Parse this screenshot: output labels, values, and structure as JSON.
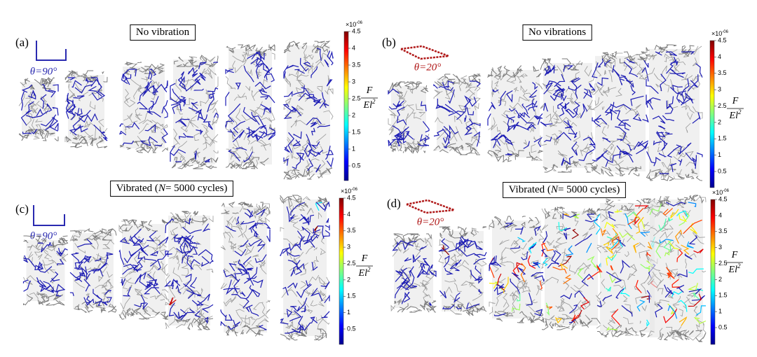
{
  "panels": [
    {
      "label": "(a)",
      "title": {
        "before": "No vibration"
      },
      "angle": "θ=90°",
      "colorbar": {
        "multiplier": "×10",
        "exponent": "-06",
        "ticks": [
          0.5,
          1,
          1.5,
          2,
          2.5,
          3,
          3.5,
          4,
          4.5
        ]
      },
      "force_label": {
        "numerator": "F",
        "denominator": "El",
        "exponent": "2"
      }
    },
    {
      "label": "(b)",
      "title": {
        "before": "No vibrations"
      },
      "angle": "θ=20°",
      "colorbar": {
        "multiplier": "×10",
        "exponent": "-06",
        "ticks": [
          0.5,
          1,
          1.5,
          2,
          2.5,
          3,
          3.5,
          4,
          4.5
        ]
      },
      "force_label": {
        "numerator": "F",
        "denominator": "El",
        "exponent": "2"
      }
    },
    {
      "label": "(c)",
      "title": {
        "before": "Vibrated (",
        "italic": "N",
        "after": "= 5000 cycles)"
      },
      "angle": "θ=90°",
      "colorbar": {
        "multiplier": "×10",
        "exponent": "-06",
        "ticks": [
          0.5,
          1,
          1.5,
          2,
          2.5,
          3,
          3.5,
          4,
          4.5
        ]
      },
      "force_label": {
        "numerator": "F",
        "denominator": "El",
        "exponent": "2"
      }
    },
    {
      "label": "(d)",
      "title": {
        "before": "Vibrated (",
        "italic": "N",
        "after": "= 5000 cycles)"
      },
      "angle": "θ=20°",
      "colorbar": {
        "multiplier": "×10",
        "exponent": "-06",
        "ticks": [
          0.5,
          1,
          1.5,
          2,
          2.5,
          3,
          3.5,
          4,
          4.5
        ]
      },
      "force_label": {
        "numerator": "F",
        "denominator": "El",
        "exponent": "2"
      }
    }
  ]
}
